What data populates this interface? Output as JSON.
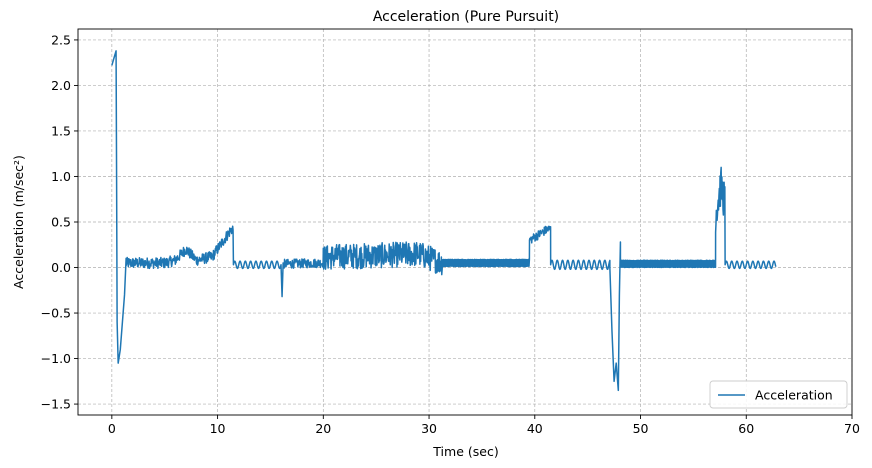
{
  "chart_data": {
    "type": "line",
    "title": "Acceleration (Pure Pursuit)",
    "xlabel": "Time (sec)",
    "ylabel": "Acceleration (m/sec²)",
    "xlim": [
      -3.2,
      70
    ],
    "ylim": [
      -1.62,
      2.62
    ],
    "xticks": [
      0,
      10,
      20,
      30,
      40,
      50,
      60,
      70
    ],
    "yticks": [
      -1.5,
      -1.0,
      -0.5,
      0.0,
      0.5,
      1.0,
      1.5,
      2.0,
      2.5
    ],
    "ytick_labels": [
      "−1.5",
      "−1.0",
      "−0.5",
      "0.0",
      "0.5",
      "1.0",
      "1.5",
      "2.0",
      "2.5"
    ],
    "grid": true,
    "legend": {
      "position": "lower-right",
      "entries": [
        "Acceleration"
      ]
    },
    "series": [
      {
        "name": "Acceleration",
        "color": "#1f77b4",
        "segments": [
          {
            "t_start": 0.0,
            "t_end": 0.5,
            "kind": "ramp",
            "points": [
              [
                0.0,
                2.22
              ],
              [
                0.2,
                2.3
              ],
              [
                0.4,
                2.38
              ],
              [
                0.45,
                1.0
              ],
              [
                0.5,
                -0.6
              ],
              [
                0.6,
                -1.05
              ],
              [
                0.8,
                -0.9
              ],
              [
                1.0,
                -0.6
              ],
              [
                1.2,
                -0.3
              ],
              [
                1.35,
                0.1
              ]
            ]
          },
          {
            "t_start": 1.35,
            "t_end": 11.5,
            "kind": "noise",
            "base": [
              [
                1.35,
                0.05
              ],
              [
                5.0,
                0.05
              ],
              [
                6.0,
                0.08
              ],
              [
                7.0,
                0.2
              ],
              [
                8.0,
                0.08
              ],
              [
                9.5,
                0.12
              ],
              [
                11.3,
                0.42
              ]
            ],
            "amp": 0.06
          },
          {
            "t_start": 11.5,
            "t_end": 16.0,
            "kind": "ripple",
            "base": 0.03,
            "amp": 0.04
          },
          {
            "t_start": 16.0,
            "t_end": 16.3,
            "kind": "spike",
            "points": [
              [
                16.0,
                0.03
              ],
              [
                16.1,
                -0.32
              ],
              [
                16.2,
                0.05
              ]
            ]
          },
          {
            "t_start": 16.3,
            "t_end": 20.0,
            "kind": "noise",
            "base": [
              [
                16.3,
                0.04
              ],
              [
                20.0,
                0.05
              ]
            ],
            "amp": 0.05
          },
          {
            "t_start": 20.0,
            "t_end": 31.3,
            "kind": "noise",
            "base": [
              [
                20.0,
                0.1
              ],
              [
                21.0,
                0.12
              ],
              [
                25.0,
                0.13
              ],
              [
                29.0,
                0.15
              ],
              [
                31.3,
                0.05
              ]
            ],
            "amp": 0.14
          },
          {
            "t_start": 31.3,
            "t_end": 39.5,
            "kind": "band",
            "base": 0.05,
            "amp": 0.04
          },
          {
            "t_start": 39.5,
            "t_end": 41.5,
            "kind": "noise",
            "base": [
              [
                39.5,
                0.3
              ],
              [
                41.2,
                0.42
              ]
            ],
            "amp": 0.05
          },
          {
            "t_start": 41.5,
            "t_end": 47.1,
            "kind": "ripple",
            "base": 0.03,
            "amp": 0.05
          },
          {
            "t_start": 47.1,
            "t_end": 48.1,
            "kind": "dip",
            "points": [
              [
                47.1,
                0.0
              ],
              [
                47.3,
                -0.7
              ],
              [
                47.5,
                -1.25
              ],
              [
                47.7,
                -1.05
              ],
              [
                47.9,
                -1.35
              ],
              [
                48.0,
                -0.3
              ],
              [
                48.1,
                0.28
              ]
            ]
          },
          {
            "t_start": 48.1,
            "t_end": 57.1,
            "kind": "band",
            "base": 0.04,
            "amp": 0.04
          },
          {
            "t_start": 57.1,
            "t_end": 58.0,
            "kind": "noise",
            "base": [
              [
                57.1,
                0.6
              ],
              [
                57.6,
                0.9
              ],
              [
                58.0,
                0.7
              ]
            ],
            "amp": 0.22
          },
          {
            "t_start": 58.0,
            "t_end": 62.8,
            "kind": "ripple",
            "base": 0.03,
            "amp": 0.04
          }
        ]
      }
    ]
  }
}
